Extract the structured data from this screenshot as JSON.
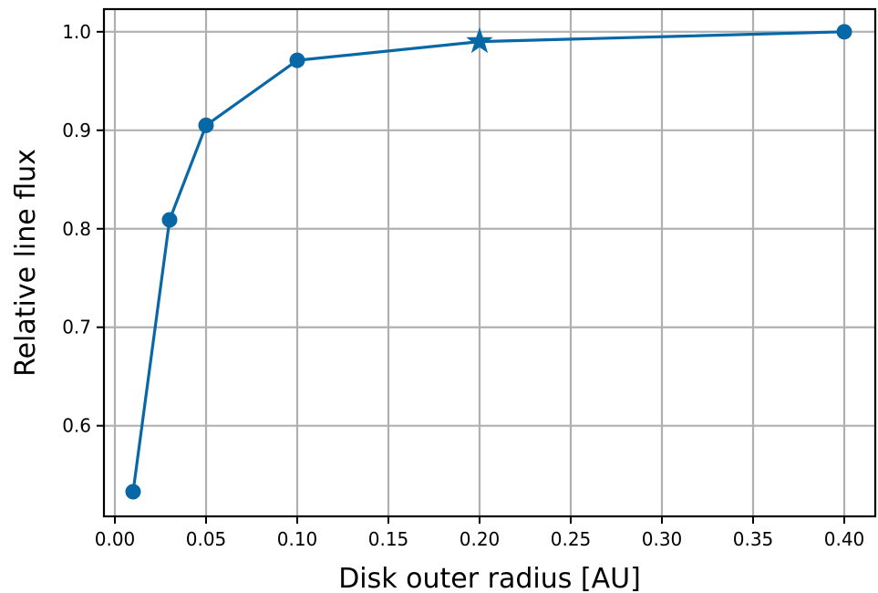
{
  "chart_data": {
    "type": "line",
    "title": "",
    "xlabel": "Disk outer radius [AU]",
    "ylabel": "Relative line flux",
    "xlim": [
      -0.006,
      0.417
    ],
    "ylim": [
      0.508,
      1.023
    ],
    "grid": true,
    "legend": "none",
    "x_ticks": [
      0.0,
      0.05,
      0.1,
      0.15,
      0.2,
      0.25,
      0.3,
      0.35,
      0.4
    ],
    "x_tick_labels": [
      "0.00",
      "0.05",
      "0.10",
      "0.15",
      "0.20",
      "0.25",
      "0.30",
      "0.35",
      "0.40"
    ],
    "y_ticks": [
      0.6,
      0.7,
      0.8,
      0.9,
      1.0
    ],
    "y_tick_labels": [
      "0.6",
      "0.7",
      "0.8",
      "0.9",
      "1.0"
    ],
    "series": [
      {
        "color": "#0868a6",
        "x": [
          0.01,
          0.03,
          0.05,
          0.1,
          0.2,
          0.4
        ],
        "y": [
          0.533,
          0.809,
          0.905,
          0.971,
          0.99,
          1.0
        ],
        "markers": [
          "circle",
          "circle",
          "circle",
          "circle",
          "star",
          "circle"
        ]
      }
    ]
  }
}
